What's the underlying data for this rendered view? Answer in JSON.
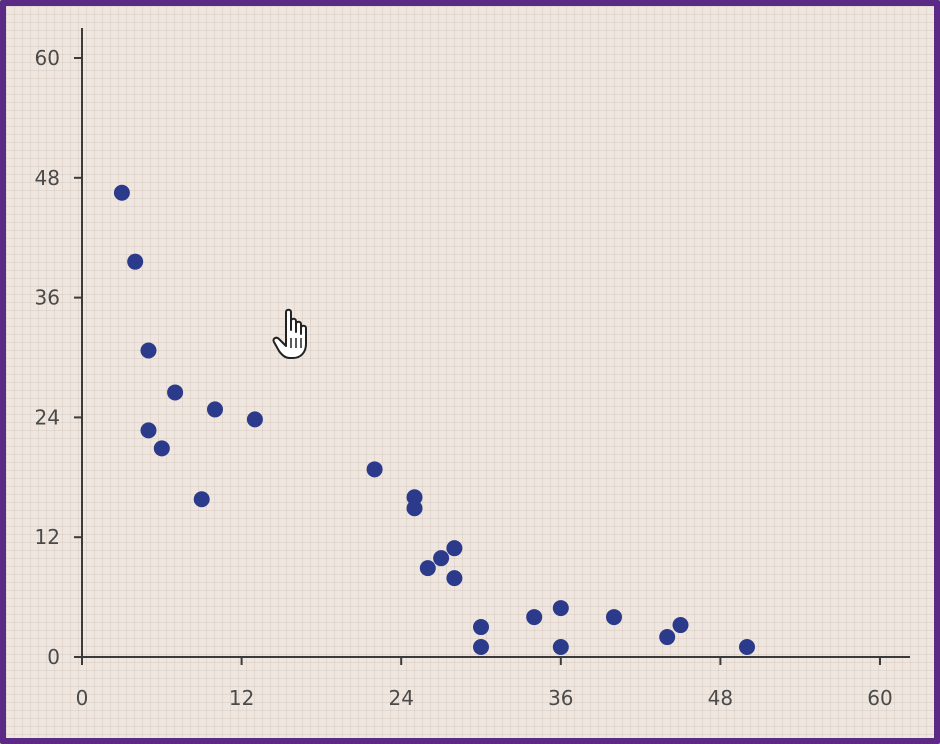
{
  "chart_data": {
    "type": "scatter",
    "title": "",
    "xlabel": "",
    "ylabel": "",
    "xlim": [
      0,
      60
    ],
    "ylim": [
      0,
      60
    ],
    "x_ticks": [
      0,
      12,
      24,
      36,
      48,
      60
    ],
    "y_ticks": [
      0,
      12,
      24,
      36,
      48,
      60
    ],
    "x_tick_labels": [
      "0",
      "12",
      "24",
      "36",
      "48",
      "60"
    ],
    "y_tick_labels": [
      "0",
      "12",
      "24",
      "36",
      "48",
      "60"
    ],
    "grid": true,
    "series": [
      {
        "color": "#2c3a8c",
        "points": [
          {
            "x": 3,
            "y": 46.5
          },
          {
            "x": 4,
            "y": 39.6
          },
          {
            "x": 5,
            "y": 30.7
          },
          {
            "x": 7,
            "y": 26.5
          },
          {
            "x": 5,
            "y": 22.7
          },
          {
            "x": 6,
            "y": 20.9
          },
          {
            "x": 9,
            "y": 15.8
          },
          {
            "x": 10,
            "y": 24.8
          },
          {
            "x": 13,
            "y": 23.8
          },
          {
            "x": 22,
            "y": 18.8
          },
          {
            "x": 25,
            "y": 16.0
          },
          {
            "x": 25,
            "y": 14.9
          },
          {
            "x": 26,
            "y": 8.9
          },
          {
            "x": 27,
            "y": 9.9
          },
          {
            "x": 28,
            "y": 10.9
          },
          {
            "x": 28,
            "y": 7.9
          },
          {
            "x": 30,
            "y": 3.0
          },
          {
            "x": 30,
            "y": 1.0
          },
          {
            "x": 34,
            "y": 4.0
          },
          {
            "x": 36,
            "y": 4.9
          },
          {
            "x": 36,
            "y": 1.0
          },
          {
            "x": 40,
            "y": 4.0
          },
          {
            "x": 44,
            "y": 2.0
          },
          {
            "x": 45,
            "y": 3.2
          },
          {
            "x": 50,
            "y": 1.0
          }
        ]
      }
    ]
  },
  "colors": {
    "frame_border": "#5b2a86",
    "background": "#efe7df",
    "axis": "#3a3a3a",
    "point": "#2c3a8c"
  },
  "cursor": {
    "icon": "hand-pointer-icon"
  }
}
